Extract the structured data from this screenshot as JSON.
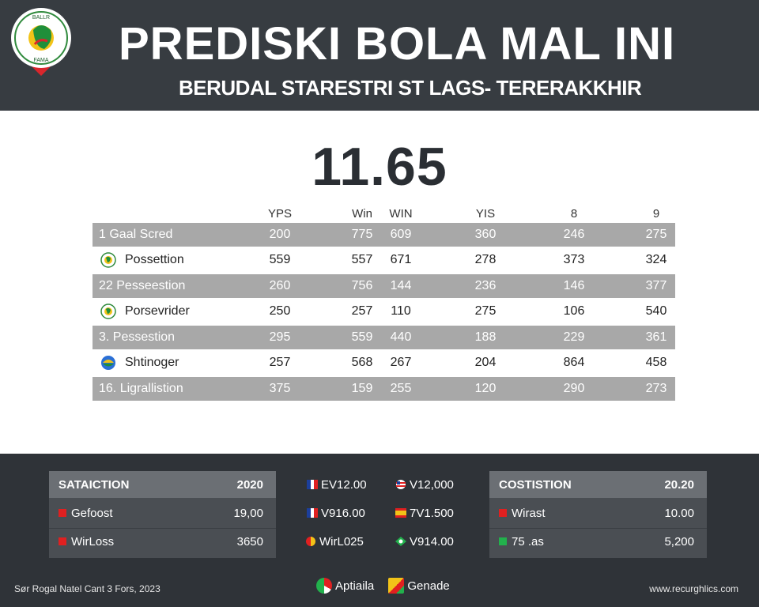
{
  "header": {
    "title": "PREDISKI BOLA MAL INI",
    "subtitle": "BERUDAL STARESTRI ST LAGS- TERERAKKHIR",
    "logo_text_top": "BALLR",
    "logo_text_bottom": "FAMA",
    "colors": {
      "background": "#373c41",
      "text": "#ffffff"
    }
  },
  "main": {
    "score": "11.65",
    "columns": [
      "YPS",
      "Win",
      "WIN",
      "YIS",
      "8",
      "9"
    ],
    "rows": [
      {
        "label": "1 Gaal Scred",
        "shaded": true,
        "icon": "",
        "values": [
          "200",
          "775",
          "609",
          "360",
          "246",
          "275"
        ]
      },
      {
        "label": "Possettion",
        "shaded": false,
        "icon": "club-badge-icon",
        "values": [
          "559",
          "557",
          "671",
          "278",
          "373",
          "324"
        ]
      },
      {
        "label": "22 Pesseestion",
        "shaded": true,
        "icon": "",
        "values": [
          "260",
          "756",
          "144",
          "236",
          "146",
          "377"
        ]
      },
      {
        "label": "Porsevrider",
        "shaded": false,
        "icon": "club-badge-icon",
        "values": [
          "250",
          "257",
          "110",
          "275",
          "106",
          "540"
        ]
      },
      {
        "label": "3.  Pessestion",
        "shaded": true,
        "icon": "",
        "values": [
          "295",
          "559",
          "440",
          "188",
          "229",
          "361"
        ]
      },
      {
        "label": "Shtinoger",
        "shaded": false,
        "icon": "club-badge-icon",
        "values": [
          "257",
          "568",
          "267",
          "204",
          "864",
          "458"
        ]
      },
      {
        "label": "16. Ligrallistion",
        "shaded": true,
        "icon": "",
        "values": [
          "375",
          "159",
          "255",
          "120",
          "290",
          "273"
        ]
      }
    ]
  },
  "footer": {
    "left_panel": {
      "title": "SATAICTION",
      "value": "2020",
      "rows": [
        {
          "label": "Gefoost",
          "value": "19,00",
          "color": "#e02020"
        },
        {
          "label": "WirLoss",
          "value": "3650",
          "color": "#e02020"
        }
      ]
    },
    "odds": [
      {
        "text": "EV12.00",
        "flag": "flag-france-icon"
      },
      {
        "text": "V12,000",
        "flag": "flag-usa-icon"
      },
      {
        "text": "V916.00",
        "flag": "flag-france-icon"
      },
      {
        "text": "7V1.500",
        "flag": "flag-spain-icon"
      },
      {
        "text": "WirL025",
        "flag": "flag-red-yellow-icon"
      },
      {
        "text": "V914.00",
        "flag": "flag-green-icon"
      }
    ],
    "right_panel": {
      "title": "COSTISTION",
      "value": "20.20",
      "rows": [
        {
          "label": "Wirast",
          "value": "10.00",
          "color": "#e02020"
        },
        {
          "label": "75 .as",
          "value": "5,200",
          "color": "#22b14c"
        }
      ]
    },
    "bottom_left": "Sør Rogal Natel Cant 3 Fors, 2023",
    "bottom_center": [
      {
        "text": "Aptiaila",
        "icon": "ball-icon"
      },
      {
        "text": "Genade",
        "icon": "colorful-square-icon"
      }
    ],
    "bottom_right": "www.recurghlics.com"
  }
}
